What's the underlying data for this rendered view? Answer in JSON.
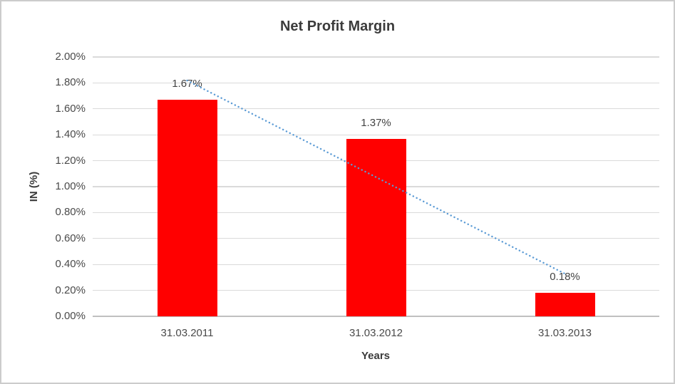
{
  "chart_data": {
    "type": "bar",
    "title": "Net Profit Margin",
    "xlabel": "Years",
    "ylabel": "IN (%)",
    "categories": [
      "31.03.2011",
      "31.03.2012",
      "31.03.2013"
    ],
    "values": [
      1.67,
      1.37,
      0.18
    ],
    "data_labels": [
      "1.67%",
      "1.37%",
      "0.18%"
    ],
    "y_ticks": [
      "2.00%",
      "1.80%",
      "1.60%",
      "1.40%",
      "1.20%",
      "1.00%",
      "0.80%",
      "0.60%",
      "0.40%",
      "0.20%",
      "0.00%"
    ],
    "ylim": [
      0,
      2.0
    ],
    "y_tick_step": 0.2,
    "grid": true,
    "legend": "none",
    "bar_color": "#ff0000",
    "trendline": {
      "type": "linear",
      "style": "dotted",
      "color": "#5b9bd5"
    },
    "colors": {
      "gridline": "#dadada",
      "axis_line": "#c0c0c0",
      "tick_text": "#4a4a4a",
      "title_text": "#3b3b3b",
      "background": "#ffffff",
      "border": "#cccccc"
    }
  }
}
